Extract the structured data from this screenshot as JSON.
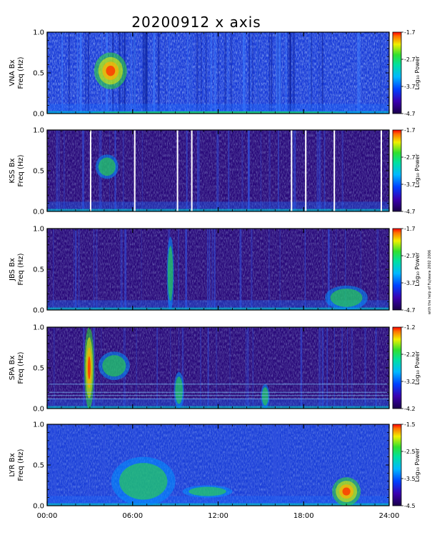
{
  "title": "20200912 x axis",
  "credit": "with the help of Fujiwara 2002 2006",
  "x_ticks": [
    "00:00",
    "06:00",
    "12:00",
    "18:00",
    "24:00"
  ],
  "colorbar_label": "Log₁₀ Power",
  "chart_data": [
    {
      "type": "heatmap",
      "station": "VNA",
      "ylabel_line1": "VNA Bx",
      "ylabel_line2": "Freq (Hz)",
      "y_ticks": [
        "1.0",
        "0.5",
        "0.0"
      ],
      "ylim": [
        0,
        1
      ],
      "xlim_hours": [
        0,
        24
      ],
      "colorbar_ticks": [
        "-1.7",
        "-2.7",
        "-3.7",
        "-4.7"
      ],
      "clim": [
        -4.7,
        -1.7
      ],
      "features": [
        {
          "t0": 3.3,
          "t1": 5.6,
          "f0": 0.3,
          "f1": 0.75,
          "level": "high"
        },
        {
          "t0": 0,
          "t1": 24,
          "f0": 0,
          "f1": 0.03,
          "level": "medium"
        }
      ]
    },
    {
      "type": "heatmap",
      "station": "KSS",
      "ylabel_line1": "KSS Bx",
      "ylabel_line2": "Freq (Hz)",
      "y_ticks": [
        "1.0",
        "0.5",
        "0.0"
      ],
      "ylim": [
        0,
        1
      ],
      "xlim_hours": [
        0,
        24
      ],
      "colorbar_ticks": [
        "-1.7",
        "-2.7",
        "-3.7",
        "-4.7"
      ],
      "clim": [
        -4.7,
        -1.7
      ],
      "data_gaps_hours": [
        3.0,
        6.1,
        9.1,
        10.1,
        17.1,
        18.1,
        20.1,
        23.4
      ],
      "features": [
        {
          "t0": 3.4,
          "t1": 5.0,
          "f0": 0.4,
          "f1": 0.7,
          "level": "medium"
        }
      ]
    },
    {
      "type": "heatmap",
      "station": "JBS",
      "ylabel_line1": "JBS Bx",
      "ylabel_line2": "Freq (Hz)",
      "y_ticks": [
        "1.0",
        "0.5",
        "0.0"
      ],
      "ylim": [
        0,
        1
      ],
      "xlim_hours": [
        0,
        24
      ],
      "colorbar_ticks": [
        "-1.7",
        "-2.7",
        "-3.7",
        "-4.7"
      ],
      "clim": [
        -4.7,
        -1.7
      ],
      "features": [
        {
          "t0": 8.4,
          "t1": 8.9,
          "f0": 0,
          "f1": 0.9,
          "level": "medium"
        },
        {
          "t0": 19.5,
          "t1": 22.5,
          "f0": 0,
          "f1": 0.3,
          "level": "medium"
        }
      ]
    },
    {
      "type": "heatmap",
      "station": "SPA",
      "ylabel_line1": "SPA Bx",
      "ylabel_line2": "Freq (Hz)",
      "y_ticks": [
        "1.0",
        "0.5",
        "0.0"
      ],
      "ylim": [
        0,
        1
      ],
      "xlim_hours": [
        0,
        24
      ],
      "colorbar_ticks": [
        "-1.2",
        "-2.2",
        "-3.2",
        "-4.2"
      ],
      "clim": [
        -4.2,
        -1.2
      ],
      "features": [
        {
          "t0": 2.6,
          "t1": 3.3,
          "f0": 0,
          "f1": 1.0,
          "level": "high"
        },
        {
          "t0": 3.6,
          "t1": 5.8,
          "f0": 0.35,
          "f1": 0.7,
          "level": "medium"
        },
        {
          "t0": 8.9,
          "t1": 9.6,
          "f0": 0,
          "f1": 0.45,
          "level": "medium"
        },
        {
          "t0": 15.0,
          "t1": 15.6,
          "f0": 0,
          "f1": 0.3,
          "level": "medium"
        }
      ]
    },
    {
      "type": "heatmap",
      "station": "LYR",
      "ylabel_line1": "LYR Bx",
      "ylabel_line2": "Freq (Hz)",
      "y_ticks": [
        "1.0",
        "0.5",
        "0.0"
      ],
      "ylim": [
        0,
        1
      ],
      "xlim_hours": [
        0,
        24
      ],
      "colorbar_ticks": [
        "-1.5",
        "-2.5",
        "-3.5",
        "-4.5"
      ],
      "clim": [
        -4.5,
        -1.5
      ],
      "features": [
        {
          "t0": 4.5,
          "t1": 9.0,
          "f0": 0,
          "f1": 0.6,
          "level": "medium"
        },
        {
          "t0": 9.5,
          "t1": 13.0,
          "f0": 0.1,
          "f1": 0.25,
          "level": "medium"
        },
        {
          "t0": 20.0,
          "t1": 22.0,
          "f0": 0,
          "f1": 0.35,
          "level": "high"
        }
      ]
    }
  ]
}
